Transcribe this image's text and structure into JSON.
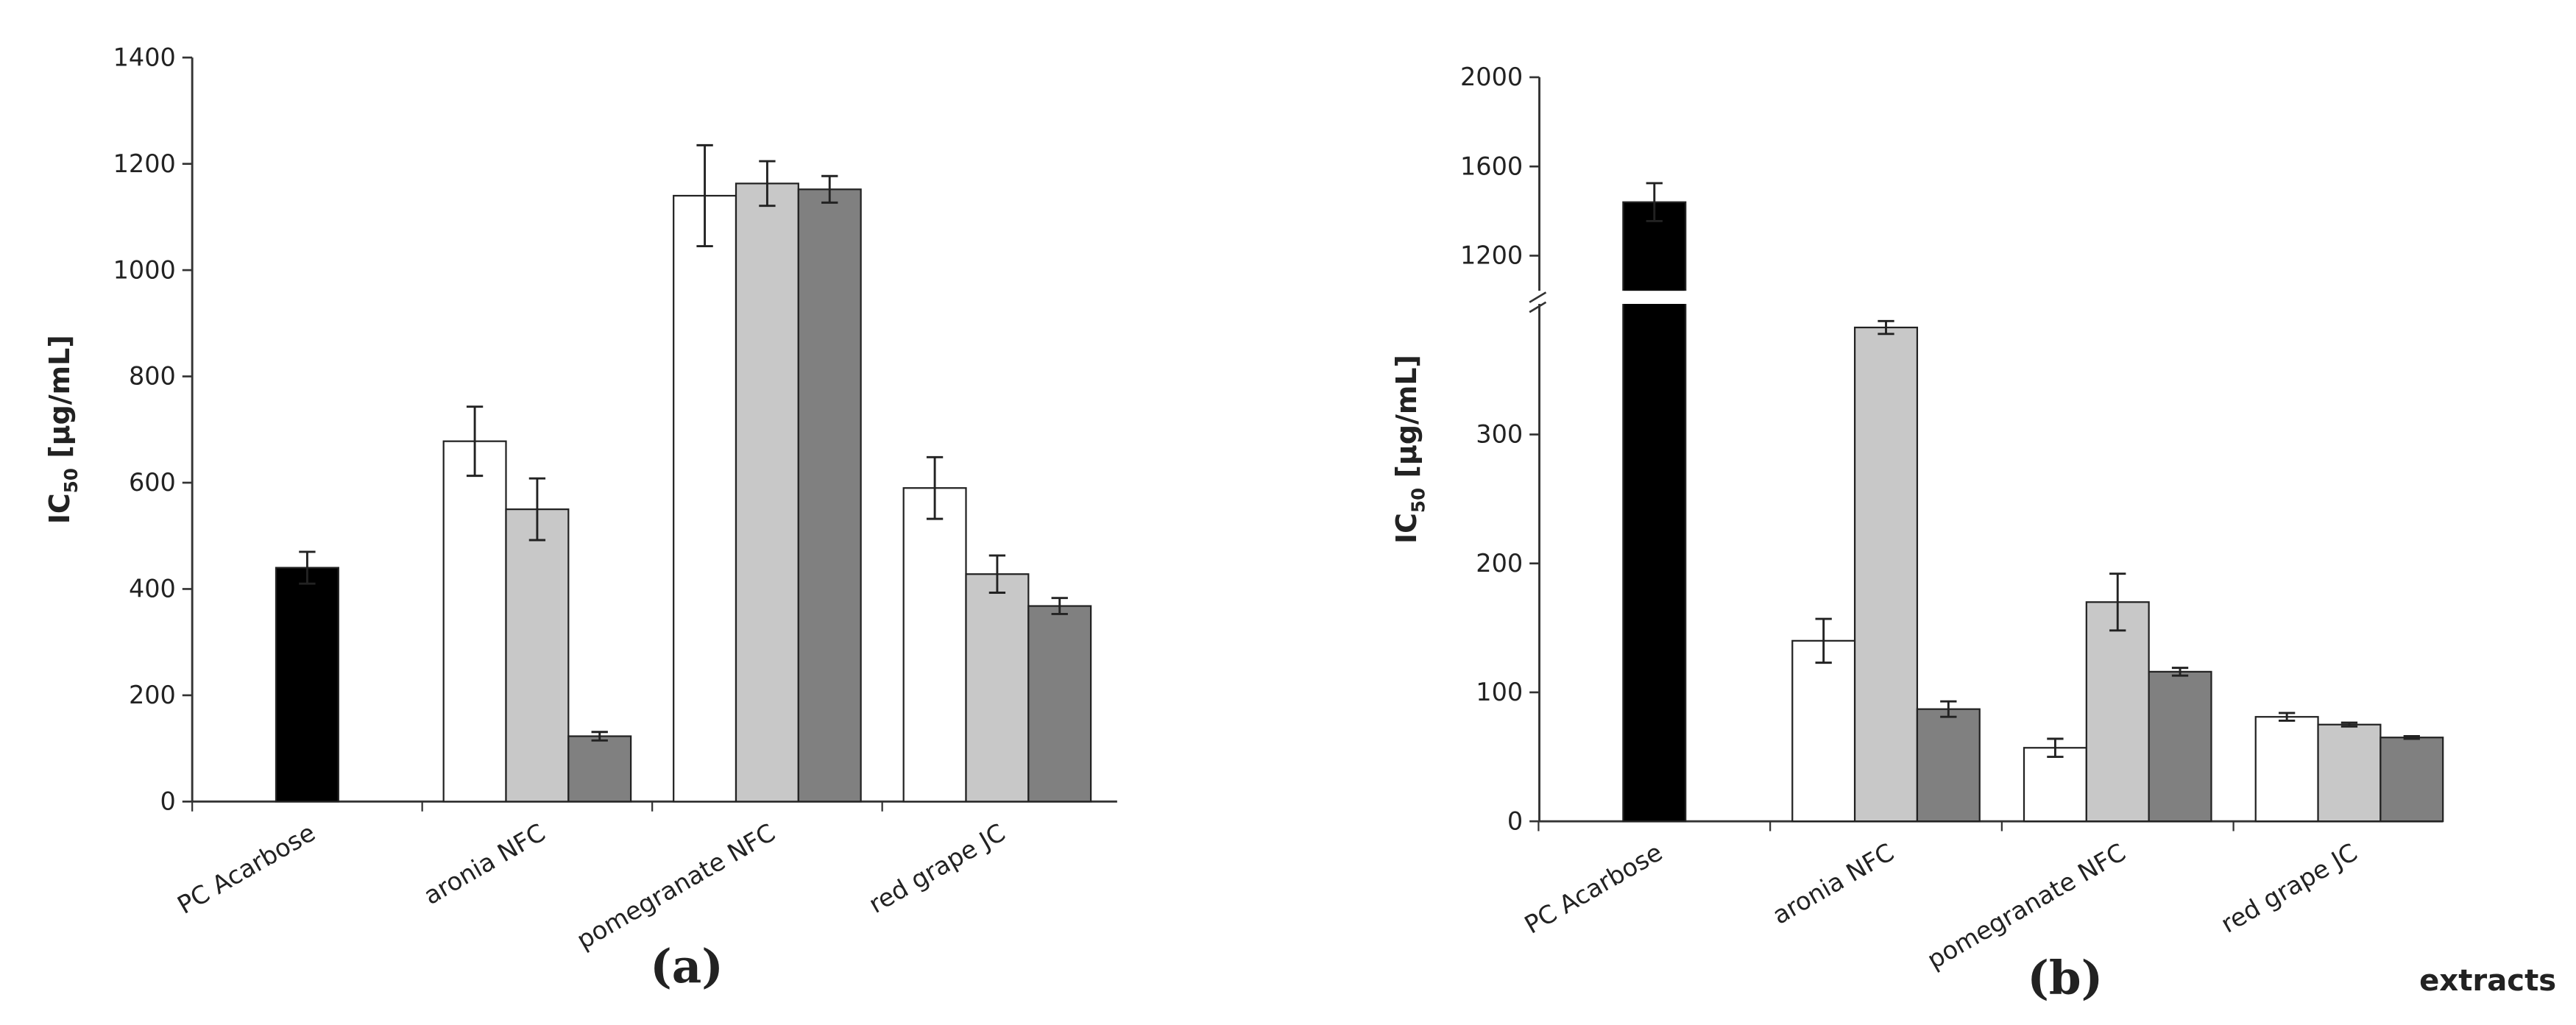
{
  "chart_data": [
    {
      "type": "bar",
      "panel_label": "(a)",
      "ylabel": {
        "main": "IC",
        "sub": "50",
        "unit": "[µg/mL]"
      },
      "categories": [
        "PC Acarbose",
        "aronia NFC",
        "pomegranate NFC",
        "red grape JC"
      ],
      "series": [
        {
          "color": "#000000",
          "values": [
            440,
            null,
            null,
            null
          ],
          "errors": [
            30,
            null,
            null,
            null
          ]
        },
        {
          "color": "#ffffff",
          "values": [
            null,
            678,
            1140,
            590
          ],
          "errors": [
            null,
            65,
            95,
            58
          ]
        },
        {
          "color": "#c8c8c8",
          "values": [
            null,
            550,
            1163,
            428
          ],
          "errors": [
            null,
            58,
            42,
            35
          ]
        },
        {
          "color": "#808080",
          "values": [
            null,
            123,
            1152,
            368
          ],
          "errors": [
            null,
            8,
            25,
            15
          ]
        }
      ],
      "ylim": [
        0,
        1400
      ],
      "yticks": [
        0,
        200,
        400,
        600,
        800,
        1000,
        1200,
        1400
      ]
    },
    {
      "type": "bar",
      "panel_label": "(b)",
      "xlabel": "extracts",
      "ylabel": {
        "main": "IC",
        "sub": "50",
        "unit": "[µg/mL]"
      },
      "categories": [
        "PC Acarbose",
        "aronia NFC",
        "pomegranate NFC",
        "red grape JC"
      ],
      "series": [
        {
          "color": "#000000",
          "values": [
            1440,
            null,
            null,
            null
          ],
          "errors": [
            85,
            null,
            null,
            null
          ]
        },
        {
          "color": "#ffffff",
          "values": [
            null,
            140,
            57,
            81
          ],
          "errors": [
            null,
            17,
            7,
            3
          ]
        },
        {
          "color": "#c8c8c8",
          "values": [
            null,
            383,
            170,
            75
          ],
          "errors": [
            null,
            5,
            22,
            1.5
          ]
        },
        {
          "color": "#808080",
          "values": [
            null,
            87,
            116,
            65
          ],
          "errors": [
            null,
            6,
            3,
            1
          ]
        }
      ],
      "ylim": [
        0,
        2000
      ],
      "ybreak": [
        400,
        1050
      ],
      "yticks": [
        0,
        100,
        200,
        300,
        1200,
        1600,
        2000
      ]
    }
  ]
}
